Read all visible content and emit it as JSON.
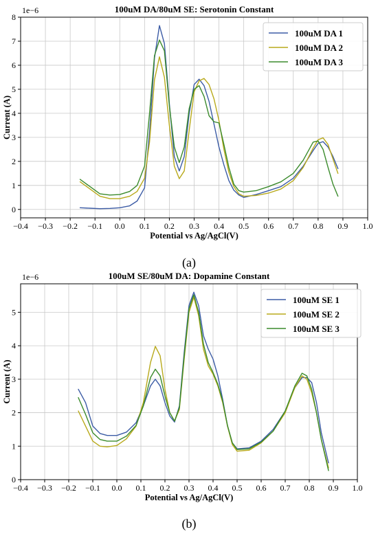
{
  "chart_data": [
    {
      "type": "line",
      "title": "100uM DA/80uM SE: Serotonin Constant",
      "xlabel": "Potential vs Ag/AgCl(V)",
      "ylabel": "Current (A)",
      "y_multiplier": "1e−6",
      "caption": "(a)",
      "xlim": [
        -0.4,
        1.0
      ],
      "ylim": [
        -0.35,
        8.0
      ],
      "xticks": [
        -0.4,
        -0.3,
        -0.2,
        -0.1,
        0.0,
        0.1,
        0.2,
        0.3,
        0.4,
        0.5,
        0.6,
        0.7,
        0.8,
        0.9,
        1.0
      ],
      "xtick_labels": [
        "−0.4",
        "−0.3",
        "−0.2",
        "−0.1",
        "0.0",
        "0.1",
        "0.2",
        "0.3",
        "0.4",
        "0.5",
        "0.6",
        "0.7",
        "0.8",
        "0.9",
        "1.0"
      ],
      "yticks": [
        0,
        1,
        2,
        3,
        4,
        5,
        6,
        7,
        8
      ],
      "ytick_labels": [
        "0",
        "1",
        "2",
        "3",
        "4",
        "5",
        "6",
        "7",
        "8"
      ],
      "grid": true,
      "legend_position": "top-right",
      "series": [
        {
          "name": "100uM DA 1",
          "color": "#3b5ba5",
          "x": [
            -0.16,
            -0.12,
            -0.08,
            -0.04,
            0.0,
            0.04,
            0.07,
            0.1,
            0.12,
            0.14,
            0.16,
            0.18,
            0.2,
            0.22,
            0.24,
            0.26,
            0.28,
            0.3,
            0.32,
            0.34,
            0.36,
            0.38,
            0.4,
            0.42,
            0.44,
            0.46,
            0.48,
            0.5,
            0.55,
            0.6,
            0.65,
            0.7,
            0.74,
            0.78,
            0.8,
            0.82,
            0.84,
            0.86,
            0.88
          ],
          "y": [
            0.07,
            0.05,
            0.03,
            0.04,
            0.07,
            0.15,
            0.35,
            0.9,
            3.2,
            6.3,
            7.65,
            6.9,
            4.4,
            2.2,
            1.6,
            2.2,
            4.0,
            5.2,
            5.42,
            5.15,
            4.5,
            3.55,
            2.6,
            1.85,
            1.2,
            0.8,
            0.6,
            0.5,
            0.62,
            0.78,
            0.95,
            1.3,
            1.8,
            2.45,
            2.75,
            2.82,
            2.6,
            2.2,
            1.7
          ]
        },
        {
          "name": "100uM DA 2",
          "color": "#b8a91a",
          "x": [
            -0.16,
            -0.12,
            -0.08,
            -0.04,
            0.0,
            0.04,
            0.07,
            0.1,
            0.12,
            0.14,
            0.16,
            0.18,
            0.2,
            0.22,
            0.24,
            0.26,
            0.28,
            0.3,
            0.32,
            0.34,
            0.36,
            0.38,
            0.4,
            0.42,
            0.44,
            0.46,
            0.48,
            0.5,
            0.55,
            0.6,
            0.65,
            0.7,
            0.74,
            0.78,
            0.8,
            0.82,
            0.84,
            0.86,
            0.88
          ],
          "y": [
            1.15,
            0.85,
            0.55,
            0.45,
            0.45,
            0.55,
            0.75,
            1.3,
            2.8,
            5.4,
            6.35,
            5.5,
            3.5,
            1.8,
            1.28,
            1.6,
            3.3,
            4.9,
            5.35,
            5.45,
            5.2,
            4.6,
            3.7,
            2.5,
            1.55,
            0.95,
            0.65,
            0.55,
            0.58,
            0.68,
            0.85,
            1.2,
            1.75,
            2.55,
            2.9,
            2.98,
            2.7,
            2.1,
            1.5
          ]
        },
        {
          "name": "100uM DA 3",
          "color": "#3a8a2b",
          "x": [
            -0.16,
            -0.12,
            -0.08,
            -0.04,
            0.0,
            0.04,
            0.07,
            0.1,
            0.12,
            0.14,
            0.16,
            0.18,
            0.2,
            0.22,
            0.24,
            0.26,
            0.28,
            0.3,
            0.32,
            0.34,
            0.36,
            0.38,
            0.4,
            0.42,
            0.44,
            0.46,
            0.48,
            0.5,
            0.55,
            0.6,
            0.65,
            0.7,
            0.74,
            0.78,
            0.8,
            0.82,
            0.84,
            0.86,
            0.88
          ],
          "y": [
            1.25,
            0.95,
            0.65,
            0.6,
            0.62,
            0.75,
            1.0,
            1.8,
            4.0,
            6.4,
            7.05,
            6.6,
            4.3,
            2.6,
            1.95,
            2.6,
            4.2,
            5.0,
            5.15,
            4.7,
            3.9,
            3.65,
            3.6,
            2.7,
            1.75,
            1.05,
            0.78,
            0.72,
            0.78,
            0.95,
            1.15,
            1.5,
            2.05,
            2.8,
            2.85,
            2.5,
            1.75,
            1.05,
            0.55
          ]
        }
      ]
    },
    {
      "type": "line",
      "title": "100uM SE/80uM DA: Dopamine Constant",
      "xlabel": "Potential vs Ag/AgCl(V)",
      "ylabel": "Current (A)",
      "y_multiplier": "1e−6",
      "caption": "(b)",
      "xlim": [
        -0.4,
        1.0
      ],
      "ylim": [
        0.0,
        5.85
      ],
      "xticks": [
        -0.4,
        -0.3,
        -0.2,
        -0.1,
        0.0,
        0.1,
        0.2,
        0.3,
        0.4,
        0.5,
        0.6,
        0.7,
        0.8,
        0.9,
        1.0
      ],
      "xtick_labels": [
        "−0.4",
        "−0.3",
        "−0.2",
        "−0.1",
        "0.0",
        "0.1",
        "0.2",
        "0.3",
        "0.4",
        "0.5",
        "0.6",
        "0.7",
        "0.8",
        "0.9",
        "1.0"
      ],
      "yticks": [
        0,
        1,
        2,
        3,
        4,
        5
      ],
      "ytick_labels": [
        "0",
        "1",
        "2",
        "3",
        "4",
        "5"
      ],
      "grid": true,
      "legend_position": "top-right",
      "series": [
        {
          "name": "100uM SE 1",
          "color": "#3b5ba5",
          "x": [
            -0.16,
            -0.13,
            -0.1,
            -0.07,
            -0.04,
            0.0,
            0.04,
            0.08,
            0.11,
            0.14,
            0.16,
            0.18,
            0.2,
            0.22,
            0.24,
            0.26,
            0.28,
            0.3,
            0.32,
            0.34,
            0.36,
            0.38,
            0.4,
            0.42,
            0.44,
            0.46,
            0.48,
            0.5,
            0.55,
            0.6,
            0.65,
            0.7,
            0.74,
            0.77,
            0.79,
            0.81,
            0.83,
            0.85,
            0.88
          ],
          "y": [
            2.7,
            2.3,
            1.6,
            1.38,
            1.32,
            1.32,
            1.42,
            1.7,
            2.2,
            2.8,
            3.0,
            2.8,
            2.3,
            1.9,
            1.72,
            2.2,
            3.8,
            5.2,
            5.6,
            5.2,
            4.3,
            3.9,
            3.6,
            3.1,
            2.4,
            1.6,
            1.1,
            0.92,
            0.95,
            1.15,
            1.5,
            2.05,
            2.75,
            3.05,
            3.05,
            2.9,
            2.3,
            1.4,
            0.5
          ]
        },
        {
          "name": "100uM SE 2",
          "color": "#b8a91a",
          "x": [
            -0.16,
            -0.13,
            -0.1,
            -0.07,
            -0.04,
            0.0,
            0.04,
            0.08,
            0.11,
            0.14,
            0.16,
            0.18,
            0.2,
            0.22,
            0.24,
            0.26,
            0.28,
            0.3,
            0.32,
            0.34,
            0.36,
            0.38,
            0.4,
            0.42,
            0.44,
            0.46,
            0.48,
            0.5,
            0.55,
            0.6,
            0.65,
            0.7,
            0.74,
            0.77,
            0.79,
            0.81,
            0.83,
            0.85,
            0.88
          ],
          "y": [
            2.05,
            1.6,
            1.15,
            1.0,
            0.98,
            1.02,
            1.22,
            1.6,
            2.3,
            3.5,
            3.98,
            3.7,
            2.7,
            2.0,
            1.75,
            2.1,
            3.6,
            5.0,
            5.45,
            4.9,
            3.9,
            3.4,
            3.15,
            2.8,
            2.3,
            1.6,
            1.05,
            0.85,
            0.88,
            1.1,
            1.45,
            2.0,
            2.75,
            3.1,
            3.0,
            2.6,
            2.0,
            1.2,
            0.35
          ]
        },
        {
          "name": "100uM SE 3",
          "color": "#3a8a2b",
          "x": [
            -0.16,
            -0.13,
            -0.1,
            -0.07,
            -0.04,
            0.0,
            0.04,
            0.08,
            0.11,
            0.14,
            0.16,
            0.18,
            0.2,
            0.22,
            0.24,
            0.26,
            0.28,
            0.3,
            0.32,
            0.34,
            0.36,
            0.38,
            0.4,
            0.42,
            0.44,
            0.46,
            0.48,
            0.5,
            0.55,
            0.6,
            0.65,
            0.7,
            0.74,
            0.77,
            0.79,
            0.81,
            0.83,
            0.85,
            0.88
          ],
          "y": [
            2.45,
            1.95,
            1.4,
            1.2,
            1.15,
            1.15,
            1.3,
            1.62,
            2.2,
            3.05,
            3.3,
            3.1,
            2.5,
            2.0,
            1.75,
            2.15,
            3.7,
            5.1,
            5.52,
            5.0,
            4.05,
            3.5,
            3.2,
            2.85,
            2.35,
            1.62,
            1.1,
            0.9,
            0.92,
            1.12,
            1.45,
            2.05,
            2.8,
            3.18,
            3.1,
            2.7,
            2.0,
            1.2,
            0.27
          ]
        }
      ]
    }
  ]
}
